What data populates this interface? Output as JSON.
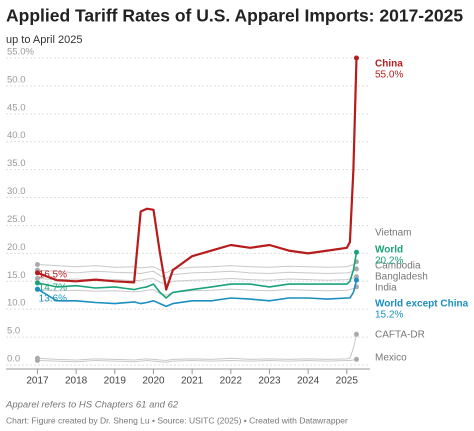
{
  "chart_data": {
    "type": "line",
    "title": "Applied Tariff Rates of U.S. Apparel Imports: 2017-2025",
    "subtitle": "up to April 2025",
    "notes": [
      "Apparel refers to HS Chapters 61 and 62",
      "Chart: Figure created by Dr. Sheng Lu • Source: USITC (2025) • Created with Datawrapper"
    ],
    "x": [
      2017,
      2017.5,
      2018,
      2018.5,
      2019,
      2019.5,
      2019.67,
      2019.83,
      2020,
      2020.17,
      2020.33,
      2020.5,
      2021,
      2021.5,
      2022,
      2022.5,
      2023,
      2023.5,
      2024,
      2024.5,
      2025,
      2025.08,
      2025.17,
      2025.25
    ],
    "xlim": [
      2016.6,
      2025.6
    ],
    "xticks": [
      2017,
      2018,
      2019,
      2020,
      2021,
      2022,
      2023,
      2024,
      2025
    ],
    "ylim": [
      0,
      55
    ],
    "yticks": [
      {
        "value": 0,
        "label": "0.0"
      },
      {
        "value": 5,
        "label": "5.0"
      },
      {
        "value": 10,
        "label": "10.0"
      },
      {
        "value": 15,
        "label": "15.0"
      },
      {
        "value": 20,
        "label": "20.0"
      },
      {
        "value": 25,
        "label": "25.0"
      },
      {
        "value": 30,
        "label": "30.0"
      },
      {
        "value": 35,
        "label": "35.0"
      },
      {
        "value": 40,
        "label": "40.0"
      },
      {
        "value": 45,
        "label": "45.0"
      },
      {
        "value": 50,
        "label": "50.0"
      },
      {
        "value": 55,
        "label": "55.0%"
      }
    ],
    "grid": true,
    "series": [
      {
        "name": "Vietnam",
        "color": "#c8c8c8",
        "values": [
          18.0,
          17.8,
          17.6,
          17.8,
          17.5,
          17.6,
          17.4,
          17.5,
          17.6,
          17.0,
          16.5,
          17.2,
          17.5,
          17.6,
          17.8,
          17.6,
          17.5,
          17.7,
          17.6,
          17.5,
          17.6,
          17.8,
          18.0,
          18.5
        ]
      },
      {
        "name": "Cambodia",
        "color": "#c8c8c8",
        "values": [
          17.0,
          16.8,
          16.5,
          16.8,
          16.6,
          16.5,
          16.4,
          16.6,
          16.8,
          16.0,
          15.5,
          16.2,
          16.5,
          16.6,
          16.8,
          16.5,
          16.4,
          16.6,
          16.5,
          16.4,
          16.5,
          16.6,
          16.8,
          17.2
        ]
      },
      {
        "name": "Bangladesh",
        "color": "#c8c8c8",
        "values": [
          15.5,
          15.3,
          15.4,
          15.2,
          15.3,
          15.1,
          15.2,
          15.4,
          15.5,
          14.8,
          14.5,
          15.0,
          15.2,
          15.3,
          15.5,
          15.3,
          15.2,
          15.4,
          15.3,
          15.2,
          15.3,
          15.4,
          15.6,
          15.8
        ]
      },
      {
        "name": "India",
        "color": "#c8c8c8",
        "values": [
          13.5,
          13.3,
          13.4,
          13.2,
          13.3,
          13.1,
          13.2,
          13.4,
          13.5,
          12.8,
          12.5,
          13.0,
          13.3,
          13.4,
          13.6,
          13.4,
          13.3,
          13.5,
          13.4,
          13.3,
          13.4,
          13.5,
          13.7,
          14.0
        ]
      },
      {
        "name": "CAFTA-DR",
        "color": "#c8c8c8",
        "values": [
          1.2,
          1.0,
          0.9,
          1.1,
          1.0,
          0.9,
          1.0,
          1.1,
          1.0,
          0.9,
          0.8,
          1.0,
          1.1,
          1.0,
          1.2,
          1.0,
          1.1,
          1.0,
          1.1,
          1.0,
          1.1,
          1.2,
          3.0,
          5.5
        ]
      },
      {
        "name": "Mexico",
        "color": "#c8c8c8",
        "values": [
          0.8,
          0.7,
          0.6,
          0.8,
          0.7,
          0.6,
          0.7,
          0.8,
          0.7,
          0.6,
          0.5,
          0.7,
          0.8,
          0.7,
          0.8,
          0.7,
          0.8,
          0.7,
          0.8,
          0.7,
          0.8,
          0.8,
          0.9,
          1.0
        ]
      },
      {
        "name": "World",
        "color": "#1aa37a",
        "values": [
          14.7,
          14.0,
          14.2,
          13.8,
          14.0,
          13.5,
          13.8,
          14.0,
          14.5,
          13.0,
          12.0,
          13.0,
          13.5,
          14.0,
          14.5,
          14.5,
          14.0,
          14.5,
          14.5,
          14.5,
          14.5,
          15.0,
          17.0,
          20.2
        ],
        "value_labels": [
          "14.7%",
          null,
          null,
          null,
          null,
          null,
          null,
          null,
          null,
          null,
          null,
          null,
          null,
          null,
          null,
          null,
          null,
          null,
          null,
          null,
          null,
          null,
          null,
          "20.2%"
        ]
      },
      {
        "name": "World except China",
        "color": "#1b8fbf",
        "values": [
          13.6,
          11.5,
          11.5,
          11.2,
          11.0,
          11.3,
          11.0,
          11.2,
          11.5,
          11.0,
          10.5,
          11.0,
          11.5,
          11.5,
          12.0,
          11.8,
          11.5,
          12.0,
          12.0,
          11.8,
          12.0,
          12.0,
          13.0,
          15.2
        ],
        "value_labels": [
          "13.6%",
          null,
          null,
          null,
          null,
          null,
          null,
          null,
          null,
          null,
          null,
          null,
          null,
          null,
          null,
          null,
          null,
          null,
          null,
          null,
          null,
          null,
          null,
          "15.2%"
        ]
      },
      {
        "name": "China",
        "color": "#b71c1c",
        "values": [
          16.5,
          15.2,
          15.0,
          15.3,
          15.0,
          14.8,
          27.5,
          28.0,
          27.8,
          20.0,
          13.5,
          17.0,
          19.5,
          20.5,
          21.5,
          21.0,
          21.5,
          20.5,
          20.0,
          20.5,
          21.0,
          22.0,
          35.0,
          55.0
        ],
        "value_labels": [
          "16.5%",
          null,
          null,
          null,
          null,
          null,
          null,
          null,
          null,
          null,
          null,
          null,
          null,
          null,
          null,
          null,
          null,
          null,
          null,
          null,
          null,
          null,
          null,
          "55.0%"
        ]
      }
    ]
  }
}
